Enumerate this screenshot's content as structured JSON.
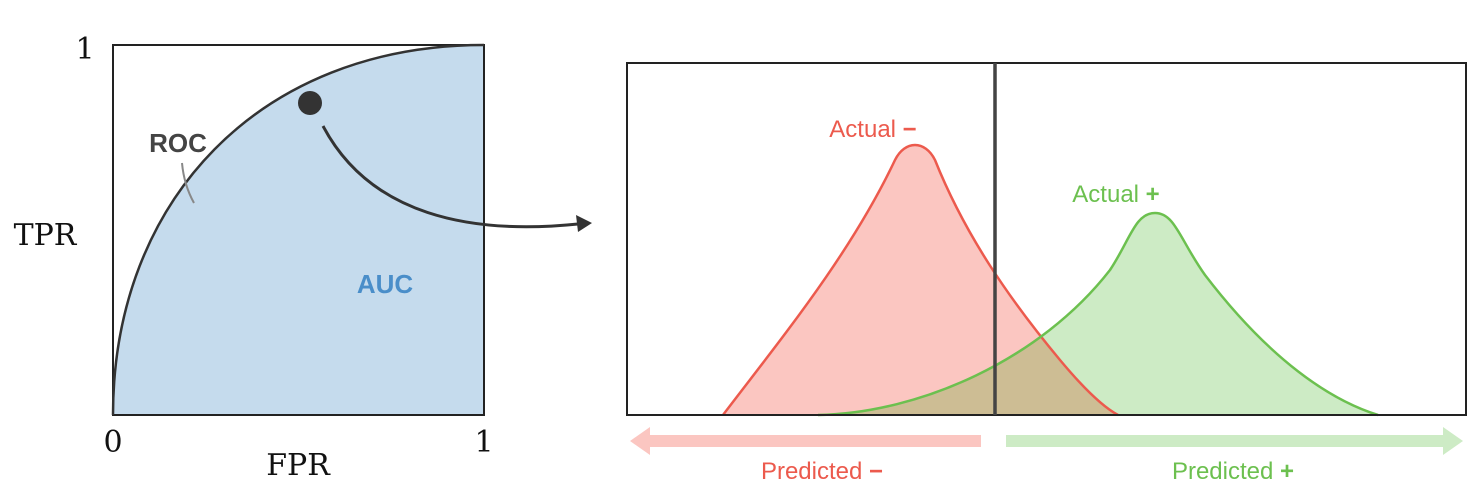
{
  "roc_panel": {
    "y_max_label": "1",
    "x_min_label": "0",
    "x_max_label": "1",
    "y_axis_label": "TPR",
    "x_axis_label": "FPR",
    "curve_label": "ROC",
    "area_label": "AUC"
  },
  "distribution_panel": {
    "negative_label": "Actual",
    "negative_sign": "−",
    "positive_label": "Actual",
    "positive_sign": "+",
    "predicted_negative_label": "Predicted",
    "predicted_negative_sign": "−",
    "predicted_positive_label": "Predicted",
    "predicted_positive_sign": "+"
  },
  "colors": {
    "auc_fill": "#c5dbed",
    "auc_text": "#4a8ec9",
    "roc_text": "#444444",
    "negative": "#ec5a4d",
    "negative_fill": "#fbc6c1",
    "positive": "#6cc04f",
    "positive_fill": "#cdebc5",
    "overlap_fill": "#cdbd94"
  }
}
